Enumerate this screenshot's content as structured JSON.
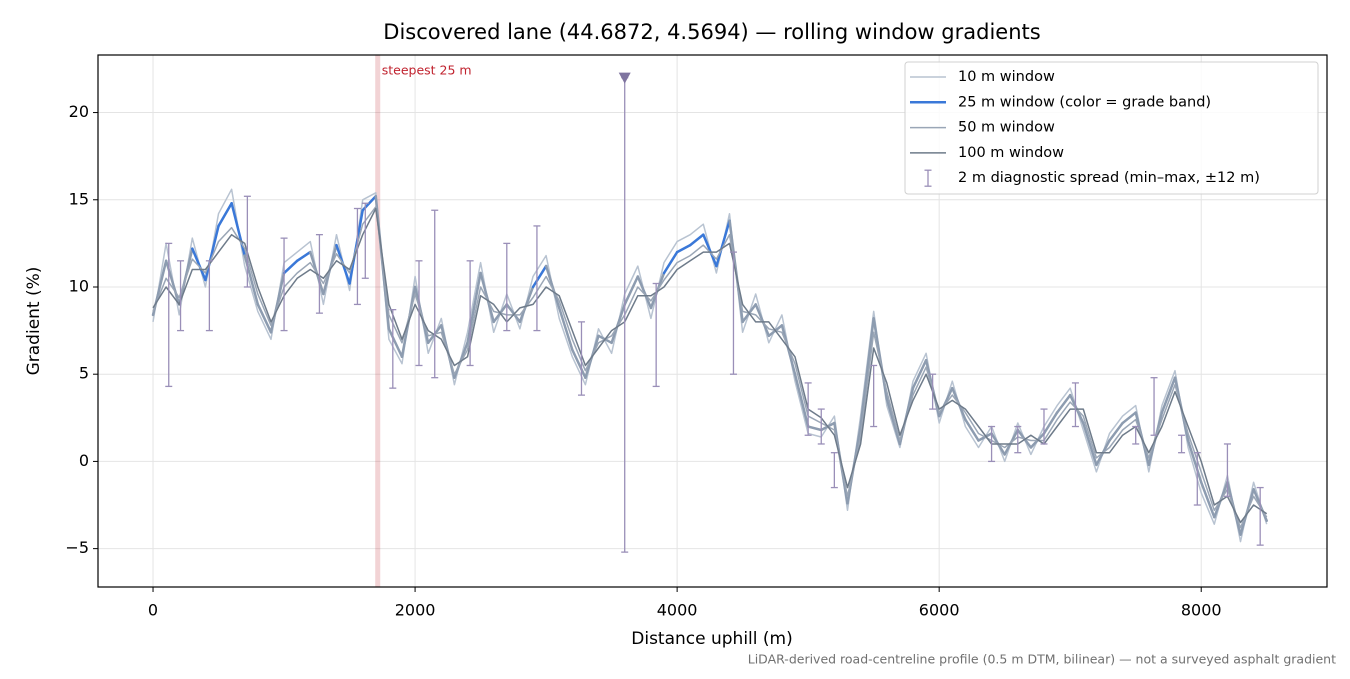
{
  "chart_data": {
    "type": "line",
    "title": "Discovered lane (44.6872, 4.5694) — rolling window gradients",
    "x_label": "Distance uphill (m)",
    "y_label": "Gradient (%)",
    "footnote": "LiDAR-derived road-centreline profile (0.5 m DTM, bilinear) — not a surveyed asphalt gradient",
    "xlim": [
      -420,
      8960
    ],
    "ylim": [
      -7.2,
      23.3
    ],
    "xticks": [
      0,
      2000,
      4000,
      6000,
      8000
    ],
    "yticks": [
      {
        "value": -5,
        "label": "−5"
      },
      0,
      5,
      10,
      15,
      20
    ],
    "grid": true,
    "legend": "upper right",
    "x": [
      0,
      100,
      200,
      300,
      400,
      500,
      600,
      700,
      800,
      900,
      1000,
      1100,
      1200,
      1300,
      1400,
      1500,
      1600,
      1700,
      1800,
      1900,
      2000,
      2100,
      2200,
      2300,
      2400,
      2500,
      2600,
      2700,
      2800,
      2900,
      3000,
      3100,
      3200,
      3300,
      3400,
      3500,
      3600,
      3700,
      3800,
      3900,
      4000,
      4100,
      4200,
      4300,
      4400,
      4500,
      4600,
      4700,
      4800,
      4900,
      5000,
      5100,
      5200,
      5300,
      5400,
      5500,
      5600,
      5700,
      5800,
      5900,
      6000,
      6100,
      6200,
      6300,
      6400,
      6500,
      6600,
      6700,
      6800,
      6900,
      7000,
      7100,
      7200,
      7300,
      7400,
      7500,
      7600,
      7700,
      7800,
      7900,
      8000,
      8100,
      8200,
      8300,
      8400,
      8500
    ],
    "series": [
      {
        "name": "10 m window",
        "color": "#b8c3d1",
        "width": 1.5,
        "values": [
          8,
          12.5,
          8.4,
          12.8,
          10,
          14.2,
          15.6,
          11.2,
          8.6,
          7,
          11.4,
          12,
          12.6,
          9,
          13,
          9.8,
          15,
          15.4,
          7,
          5.6,
          10.6,
          6.2,
          8.2,
          4.4,
          7.4,
          11.4,
          7.4,
          9.6,
          7.6,
          10.6,
          11.8,
          8.2,
          6,
          4.4,
          7.6,
          6.2,
          9.6,
          11.2,
          8.2,
          11.4,
          12.6,
          13,
          13.6,
          10.8,
          14.2,
          7.4,
          9.6,
          6.8,
          8.4,
          4.6,
          1.6,
          1.4,
          2.6,
          -2.8,
          2.6,
          8.6,
          3.2,
          0.8,
          4.6,
          6.2,
          2.2,
          4.6,
          2,
          0.8,
          2,
          0,
          2.2,
          0.4,
          2,
          3.2,
          4.2,
          1.8,
          -0.6,
          1.6,
          2.6,
          3.2,
          -0.6,
          3.2,
          5.2,
          0.8,
          -1.8,
          -3.6,
          -0.8,
          -4.6,
          -1.2,
          -3.6
        ]
      },
      {
        "name": "25 m window (color = grade band)",
        "color": "#3a78d8",
        "band_color": "#8d9cb0",
        "band_min": 10,
        "width": 2.5,
        "values": [
          8.4,
          11.5,
          9,
          12.2,
          10.4,
          13.5,
          14.8,
          11.8,
          9,
          7.4,
          10.8,
          11.5,
          12,
          9.6,
          12.4,
          10.2,
          14.4,
          15.2,
          7.6,
          6,
          10,
          6.8,
          7.8,
          4.8,
          6.8,
          10.8,
          8,
          9,
          8,
          10,
          11.2,
          8.8,
          6.4,
          4.8,
          7.2,
          6.8,
          9,
          10.6,
          8.8,
          10.8,
          12,
          12.4,
          13,
          11.2,
          13.8,
          8,
          9,
          7.2,
          7.8,
          5,
          2,
          1.8,
          2.2,
          -2.4,
          2,
          8.2,
          3.6,
          1,
          4.2,
          5.8,
          2.6,
          4.2,
          2.4,
          1.2,
          1.6,
          0.4,
          1.8,
          0.8,
          1.6,
          2.8,
          3.8,
          2.2,
          -0.2,
          1.2,
          2.2,
          2.8,
          -0.2,
          2.8,
          4.8,
          1.2,
          -1.2,
          -3.2,
          -1.2,
          -4.2,
          -1.6,
          -3.4
        ]
      },
      {
        "name": "50 m window",
        "color": "#9aa6b6",
        "width": 1.5,
        "values": [
          8.6,
          10.5,
          9.4,
          11.6,
          10.8,
          12.6,
          13.4,
          12.2,
          9.6,
          7.8,
          10,
          10.8,
          11.4,
          10.2,
          11.9,
          10.8,
          13.6,
          14.6,
          8.4,
          6.8,
          9.6,
          7.2,
          7.4,
          5,
          6.4,
          10,
          8.6,
          8.4,
          8.4,
          9.4,
          10.6,
          9.2,
          7,
          5.2,
          6.8,
          7.2,
          8.4,
          10,
          9.2,
          10.4,
          11.4,
          11.8,
          12.4,
          11.6,
          13,
          8.6,
          8.4,
          7.6,
          7.4,
          5.6,
          2.6,
          2.2,
          1.8,
          -2,
          1.4,
          7.4,
          4,
          1.2,
          3.8,
          5.4,
          2.8,
          3.8,
          2.8,
          1.6,
          1.2,
          0.8,
          1.4,
          1.2,
          1.2,
          2.4,
          3.4,
          2.6,
          0.2,
          0.8,
          1.8,
          2.4,
          0.2,
          2.4,
          4.4,
          1.6,
          -0.6,
          -2.8,
          -1.6,
          -3.8,
          -2,
          -3.2
        ]
      },
      {
        "name": "100 m window",
        "color": "#6e7b8a",
        "width": 1.5,
        "values": [
          8.8,
          10,
          9,
          11,
          11,
          12,
          13,
          12.5,
          10,
          8,
          9.5,
          10.5,
          11,
          10.5,
          11.5,
          11,
          13,
          14.5,
          9,
          7,
          9,
          7.5,
          7,
          5.5,
          6,
          9.5,
          9,
          8,
          8.8,
          9,
          10,
          9.5,
          7.5,
          5.5,
          6.5,
          7.5,
          8,
          9.5,
          9.5,
          10,
          11,
          11.5,
          12,
          12,
          12.5,
          9,
          8,
          8,
          7,
          6,
          3,
          2.5,
          1.5,
          -1.5,
          1,
          6.5,
          4.5,
          1.5,
          3.5,
          5,
          3,
          3.5,
          3,
          2,
          1,
          1,
          1,
          1.5,
          1,
          2,
          3,
          3,
          0.5,
          0.5,
          1.5,
          2,
          0.5,
          2,
          4,
          2,
          0,
          -2.5,
          -2,
          -3.5,
          -2.5,
          -3
        ]
      }
    ],
    "spread": {
      "name": "2 m diagnostic spread (min–max, ±12 m)",
      "color": "#9a8fb8",
      "x": [
        120,
        210,
        430,
        720,
        1000,
        1270,
        1560,
        1620,
        1830,
        2030,
        2150,
        2420,
        2700,
        2930,
        3270,
        3600,
        3840,
        4430,
        5000,
        5100,
        5200,
        5500,
        5950,
        6400,
        6600,
        6800,
        7040,
        7500,
        7640,
        7850,
        7970,
        8200,
        8450
      ],
      "lower": [
        4.3,
        7.5,
        7.5,
        10,
        7.5,
        8.5,
        9,
        10.5,
        4.2,
        5.5,
        4.8,
        5.5,
        7.5,
        7.5,
        3.8,
        -5.2,
        4.3,
        5,
        1.5,
        1,
        -1.5,
        2,
        3,
        0,
        0.5,
        1,
        2,
        1,
        1.5,
        0.5,
        -2.5,
        -2,
        -4.8
      ],
      "upper": [
        12.5,
        11.5,
        11.5,
        15.2,
        12.8,
        13,
        14.5,
        14.8,
        8.7,
        11.5,
        14.4,
        11.5,
        12.5,
        13.5,
        8,
        22,
        10.2,
        12,
        4.5,
        3,
        0.5,
        5.5,
        5,
        2,
        2,
        3,
        4.5,
        2,
        4.8,
        1.5,
        0.5,
        1,
        -1.5
      ]
    },
    "marker": {
      "x": 3600,
      "y": 22,
      "color": "#7f74a0"
    },
    "steepest": {
      "x": 1715,
      "label": "steepest 25 m",
      "color": "#c0222e"
    }
  }
}
